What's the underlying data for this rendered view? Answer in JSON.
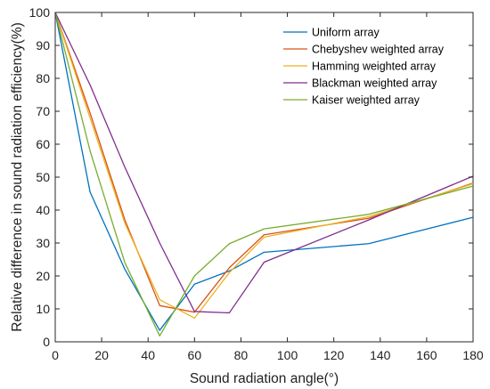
{
  "chart_data": {
    "type": "line",
    "xlabel": "Sound radiation angle(°)",
    "ylabel": "Relative difference in sound radiation efficiency(%)",
    "xlim": [
      0,
      180
    ],
    "ylim": [
      0,
      100
    ],
    "xticks": [
      0,
      20,
      40,
      60,
      80,
      100,
      120,
      140,
      160,
      180
    ],
    "yticks": [
      0,
      10,
      20,
      30,
      40,
      50,
      60,
      70,
      80,
      90,
      100
    ],
    "grid": false,
    "legend_position": "top-right",
    "series": [
      {
        "name": "Uniform array",
        "color": "#0072BD",
        "points": [
          [
            0,
            100
          ],
          [
            15,
            45.5
          ],
          [
            30,
            22
          ],
          [
            45,
            3.5
          ],
          [
            60,
            17.5
          ],
          [
            75,
            21.5
          ],
          [
            90,
            27.2
          ],
          [
            135,
            29.8
          ],
          [
            180,
            37.8
          ]
        ]
      },
      {
        "name": "Chebyshev weighted array",
        "color": "#D95319",
        "points": [
          [
            0,
            100
          ],
          [
            15,
            69.5
          ],
          [
            30,
            37
          ],
          [
            45,
            11
          ],
          [
            60,
            9
          ],
          [
            75,
            22.5
          ],
          [
            90,
            32.5
          ],
          [
            135,
            37.5
          ],
          [
            180,
            48.2
          ]
        ]
      },
      {
        "name": "Hamming weighted array",
        "color": "#EDB120",
        "points": [
          [
            0,
            100
          ],
          [
            15,
            68
          ],
          [
            30,
            36
          ],
          [
            45,
            12.8
          ],
          [
            60,
            7.2
          ],
          [
            75,
            21
          ],
          [
            90,
            31.8
          ],
          [
            135,
            38
          ],
          [
            180,
            48
          ]
        ]
      },
      {
        "name": "Blackman weighted array",
        "color": "#7E2F8E",
        "points": [
          [
            0,
            100
          ],
          [
            15,
            78
          ],
          [
            30,
            53
          ],
          [
            45,
            30
          ],
          [
            60,
            9.2
          ],
          [
            75,
            8.8
          ],
          [
            90,
            24.2
          ],
          [
            135,
            37
          ],
          [
            180,
            50.3
          ]
        ]
      },
      {
        "name": "Kaiser weighted array",
        "color": "#77AC30",
        "points": [
          [
            0,
            100
          ],
          [
            15,
            58
          ],
          [
            30,
            24
          ],
          [
            45,
            1.8
          ],
          [
            60,
            20
          ],
          [
            75,
            29.8
          ],
          [
            90,
            34.3
          ],
          [
            135,
            38.7
          ],
          [
            180,
            47.3
          ]
        ]
      }
    ]
  }
}
